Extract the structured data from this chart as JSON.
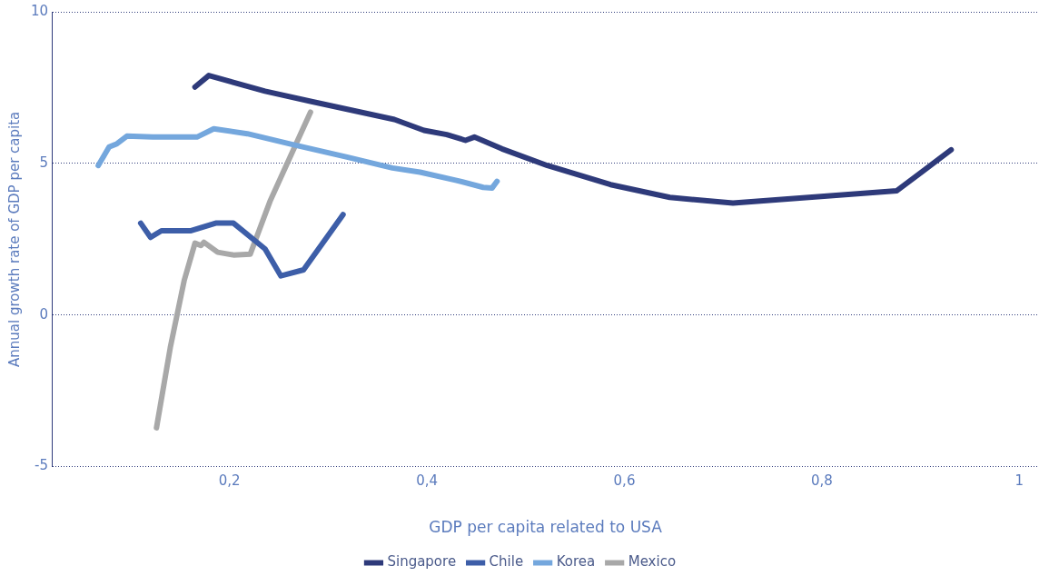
{
  "chart_data": {
    "type": "line",
    "xlabel": "GDP per capita related to USA",
    "ylabel": "Annual growth rate of GDP per capita",
    "xlim": [
      0.02,
      1.02
    ],
    "xticks": [
      {
        "value": 0.2,
        "label": "0,2"
      },
      {
        "value": 0.4,
        "label": "0,4"
      },
      {
        "value": 0.6,
        "label": "0,6"
      },
      {
        "value": 0.8,
        "label": "0,8"
      },
      {
        "value": 1,
        "label": "1"
      }
    ],
    "ylim": [
      -5,
      10
    ],
    "yticks": [
      -5,
      0,
      5,
      10
    ],
    "grid": "y",
    "legend": "bottom",
    "marker": "none",
    "line_style": "solid",
    "series": [
      {
        "name": "Singapore",
        "color": "#2e3a7a",
        "x": [
          0.165,
          0.179,
          0.236,
          0.282,
          0.367,
          0.397,
          0.42,
          0.439,
          0.448,
          0.476,
          0.522,
          0.586,
          0.646,
          0.71,
          0.876,
          0.931
        ],
        "values": [
          7.52,
          7.9,
          7.38,
          7.05,
          6.45,
          6.09,
          5.95,
          5.76,
          5.87,
          5.48,
          4.93,
          4.3,
          3.88,
          3.69,
          4.1,
          5.45
        ]
      },
      {
        "name": "Chile",
        "color": "#3d5ea8",
        "x": [
          0.11,
          0.12,
          0.131,
          0.161,
          0.186,
          0.204,
          0.236,
          0.252,
          0.275,
          0.315
        ],
        "values": [
          3.03,
          2.56,
          2.78,
          2.78,
          3.03,
          3.03,
          2.18,
          1.29,
          1.49,
          3.31
        ]
      },
      {
        "name": "Korea",
        "color": "#74a7dd",
        "x": [
          0.067,
          0.078,
          0.086,
          0.096,
          0.122,
          0.167,
          0.184,
          0.218,
          0.264,
          0.319,
          0.365,
          0.393,
          0.43,
          0.457,
          0.466,
          0.471
        ],
        "values": [
          4.93,
          5.54,
          5.65,
          5.9,
          5.87,
          5.87,
          6.14,
          5.98,
          5.62,
          5.21,
          4.85,
          4.71,
          4.44,
          4.21,
          4.19,
          4.41
        ]
      },
      {
        "name": "Mexico",
        "color": "#a8a8a8",
        "x": [
          0.126,
          0.14,
          0.154,
          0.165,
          0.171,
          0.174,
          0.188,
          0.204,
          0.221,
          0.241,
          0.264,
          0.282
        ],
        "values": [
          -3.72,
          -1.07,
          1.13,
          2.37,
          2.29,
          2.4,
          2.07,
          1.98,
          2.01,
          3.75,
          5.4,
          6.69
        ]
      }
    ]
  }
}
